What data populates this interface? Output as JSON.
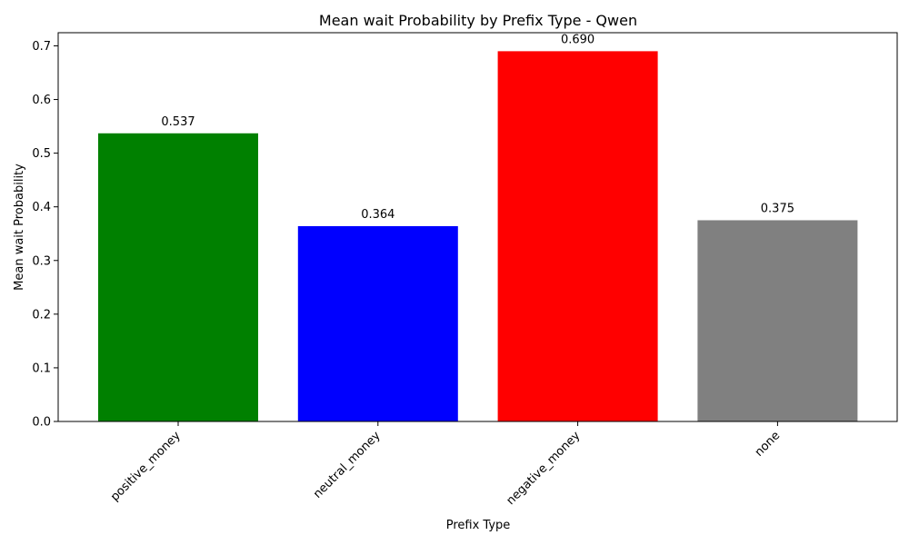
{
  "chart_data": {
    "type": "bar",
    "title": "Mean wait Probability by Prefix Type - Qwen",
    "xlabel": "Prefix Type",
    "ylabel": "Mean wait Probability",
    "categories": [
      "positive_money",
      "neutral_money",
      "negative_money",
      "none"
    ],
    "values": [
      0.537,
      0.364,
      0.69,
      0.375
    ],
    "value_labels": [
      "0.537",
      "0.364",
      "0.690",
      "0.375"
    ],
    "colors": [
      "#008000",
      "#0000ff",
      "#ff0000",
      "#808080"
    ],
    "ylim": [
      0,
      0.7245
    ],
    "yticks": [
      0.0,
      0.1,
      0.2,
      0.3,
      0.4,
      0.5,
      0.6,
      0.7
    ],
    "ytick_labels": [
      "0.0",
      "0.1",
      "0.2",
      "0.3",
      "0.4",
      "0.5",
      "0.6",
      "0.7"
    ],
    "xtick_rotation": 45,
    "grid": false,
    "legend": "none"
  }
}
